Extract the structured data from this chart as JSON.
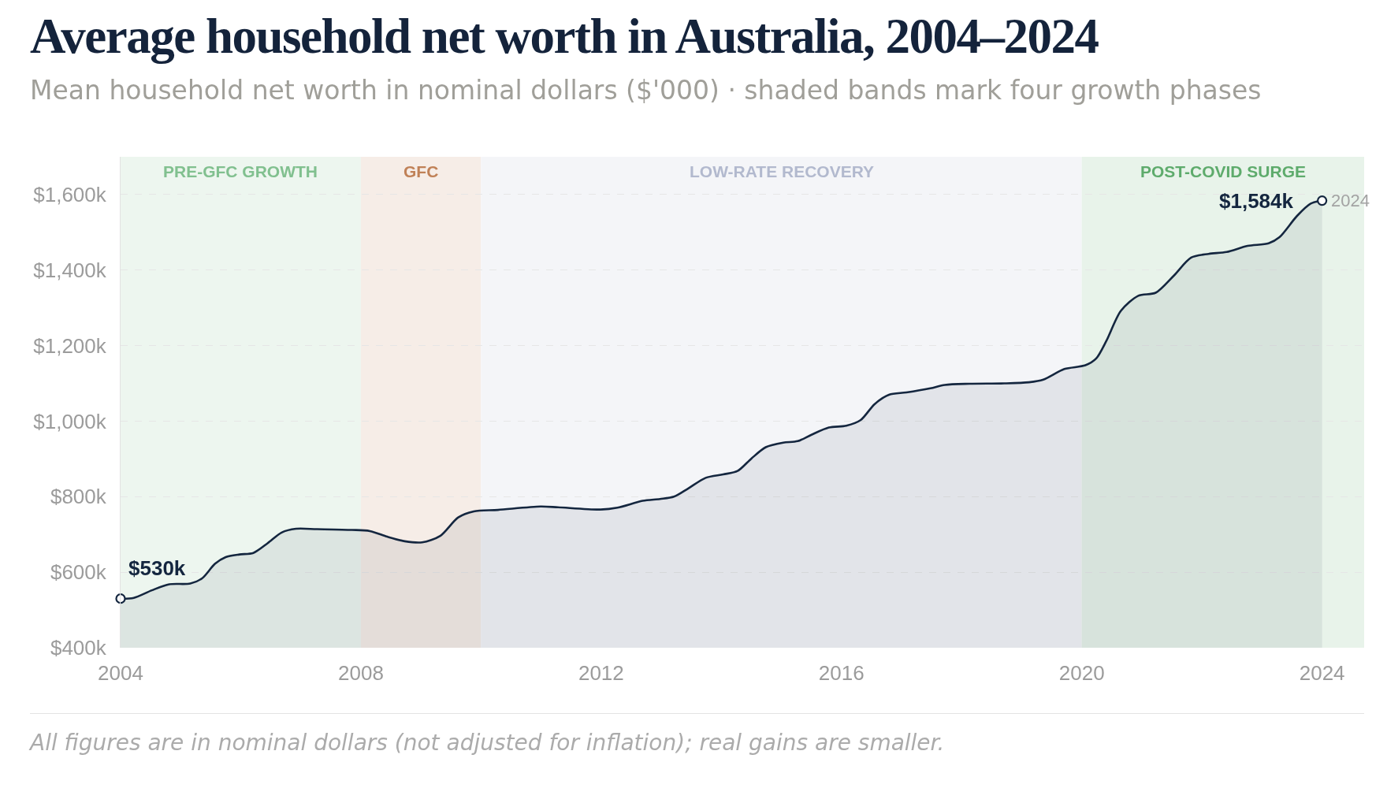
{
  "chart_data": {
    "type": "area",
    "title": "Average household net worth in Australia, 2004–2024",
    "subtitle": "Mean household net worth in nominal dollars ($'000) · shaded bands mark four growth phases",
    "x": [
      2004.0,
      2004.22,
      2004.52,
      2004.81,
      2005.16,
      2005.36,
      2005.57,
      2005.75,
      2005.98,
      2006.21,
      2006.45,
      2006.68,
      2006.92,
      2007.27,
      2007.85,
      2008.15,
      2008.44,
      2008.73,
      2009.02,
      2009.32,
      2009.62,
      2009.88,
      2010.28,
      2010.99,
      2011.28,
      2011.98,
      2012.27,
      2012.69,
      2012.98,
      2013.21,
      2013.45,
      2013.74,
      2014.03,
      2014.27,
      2014.5,
      2014.74,
      2015.03,
      2015.27,
      2015.5,
      2015.79,
      2016.08,
      2016.32,
      2016.55,
      2016.79,
      2017.08,
      2017.48,
      2017.72,
      2018.13,
      2018.71,
      2019.12,
      2019.36,
      2019.71,
      2020.06,
      2020.24,
      2020.41,
      2020.65,
      2020.94,
      2021.23,
      2021.53,
      2021.82,
      2022.11,
      2022.41,
      2022.76,
      2023.11,
      2023.29,
      2023.58,
      2023.81,
      2024.0
    ],
    "series": [
      {
        "color": "#14263f",
        "values": [
          530,
          532,
          552,
          568,
          570,
          584,
          622,
          640,
          647,
          651,
          677,
          705,
          715,
          714,
          712,
          709,
          694,
          682,
          679,
          696,
          745,
          761,
          765,
          774,
          772,
          766,
          771,
          789,
          794,
          800,
          822,
          850,
          859,
          868,
          901,
          931,
          943,
          947,
          964,
          983,
          988,
          1003,
          1045,
          1070,
          1076,
          1087,
          1096,
          1099,
          1100,
          1103,
          1110,
          1138,
          1148,
          1166,
          1213,
          1292,
          1332,
          1340,
          1385,
          1433,
          1443,
          1448,
          1464,
          1471,
          1487,
          1543,
          1576,
          1584
        ],
        "value_labels": [
          "$530k",
          null,
          null,
          null,
          null,
          null,
          null,
          null,
          null,
          null,
          null,
          null,
          null,
          null,
          null,
          null,
          null,
          null,
          null,
          null,
          null,
          null,
          null,
          null,
          null,
          null,
          null,
          null,
          null,
          null,
          null,
          null,
          null,
          null,
          null,
          null,
          null,
          null,
          null,
          null,
          null,
          null,
          null,
          null,
          null,
          null,
          null,
          null,
          null,
          null,
          null,
          null,
          null,
          null,
          null,
          null,
          null,
          null,
          null,
          null,
          null,
          null,
          null,
          null,
          null,
          null,
          null,
          "$1,584k"
        ]
      }
    ],
    "xlim": [
      2004,
      2024.7
    ],
    "xticks": [
      2004,
      2008,
      2012,
      2016,
      2020,
      2024
    ],
    "ylim": [
      400,
      1700
    ],
    "yticks": [
      {
        "value": 400,
        "label": "$400k"
      },
      {
        "value": 600,
        "label": "$600k"
      },
      {
        "value": 800,
        "label": "$800k"
      },
      {
        "value": 1000,
        "label": "$1,000k"
      },
      {
        "value": 1200,
        "label": "$1,200k"
      },
      {
        "value": 1400,
        "label": "$1,400k"
      },
      {
        "value": 1600,
        "label": "$1,600k"
      }
    ],
    "grid": "y",
    "bands": [
      {
        "axis": "x",
        "from": 2004,
        "to": 2008,
        "label": "PRE-GFC GROWTH",
        "color": "#edf6ef"
      },
      {
        "axis": "x",
        "from": 2008,
        "to": 2010,
        "label": "GFC",
        "color": "#f6ede7"
      },
      {
        "axis": "x",
        "from": 2010,
        "to": 2020,
        "label": "LOW-RATE RECOVERY",
        "color": "#f4f5f8"
      },
      {
        "axis": "x",
        "from": 2020,
        "to": 2024.7,
        "label": "POST-COVID SURGE",
        "color": "#e8f3ea"
      }
    ],
    "annotations": [
      {
        "text": "2024",
        "x": 2024,
        "y": 1584
      },
      "All figures are in nominal dollars (not adjusted for inflation); real gains are smaller."
    ]
  }
}
